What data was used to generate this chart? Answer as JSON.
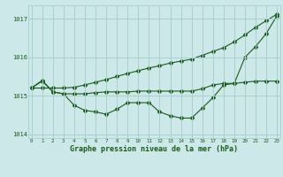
{
  "title": "",
  "xlabel": "Graphe pression niveau de la mer (hPa)",
  "ylabel": "",
  "background_color": "#cce8e8",
  "grid_color": "#aacece",
  "line_color": "#1a5c1a",
  "x": [
    0,
    1,
    2,
    3,
    4,
    5,
    6,
    7,
    8,
    9,
    10,
    11,
    12,
    13,
    14,
    15,
    16,
    17,
    18,
    19,
    20,
    21,
    22,
    23
  ],
  "line1": [
    1015.2,
    1015.4,
    1015.1,
    1015.05,
    1014.75,
    1014.62,
    1014.58,
    1014.52,
    1014.65,
    1014.82,
    1014.82,
    1014.82,
    1014.58,
    1014.48,
    1014.42,
    1014.42,
    1014.68,
    1014.95,
    1015.28,
    1015.32,
    1016.0,
    1016.28,
    1016.62,
    1017.08
  ],
  "line2": [
    1015.2,
    1015.2,
    1015.2,
    1015.2,
    1015.22,
    1015.28,
    1015.35,
    1015.42,
    1015.5,
    1015.58,
    1015.65,
    1015.72,
    1015.78,
    1015.85,
    1015.9,
    1015.95,
    1016.05,
    1016.15,
    1016.25,
    1016.4,
    1016.58,
    1016.78,
    1016.95,
    1017.12
  ],
  "line3": [
    1015.2,
    1015.38,
    1015.1,
    1015.05,
    1015.05,
    1015.05,
    1015.08,
    1015.1,
    1015.1,
    1015.1,
    1015.12,
    1015.12,
    1015.12,
    1015.12,
    1015.12,
    1015.12,
    1015.18,
    1015.28,
    1015.32,
    1015.32,
    1015.35,
    1015.38,
    1015.38,
    1015.38
  ],
  "ylim": [
    1013.9,
    1017.35
  ],
  "yticks": [
    1014,
    1015,
    1016,
    1017
  ],
  "xticks": [
    0,
    1,
    2,
    3,
    4,
    5,
    6,
    7,
    8,
    9,
    10,
    11,
    12,
    13,
    14,
    15,
    16,
    17,
    18,
    19,
    20,
    21,
    22,
    23
  ]
}
